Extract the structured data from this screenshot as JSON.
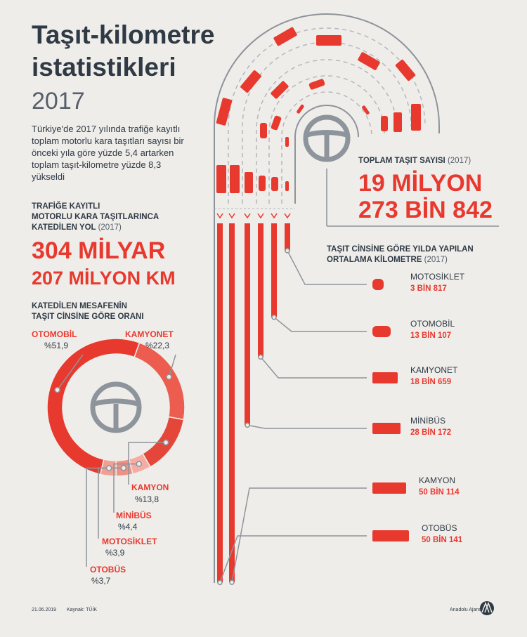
{
  "header": {
    "title_lines": [
      "Taşıt-kilometre",
      "istatistikleri"
    ],
    "year": "2017",
    "intro_lines": [
      "Türkiye'de 2017 yılında trafiğe kayıtlı",
      "toplam motorlu kara taşıtları sayısı bir",
      "önceki yıla göre yüzde 5,4 artarken",
      "toplam taşıt-kilometre yüzde 8,3",
      "yükseldi"
    ]
  },
  "total_km": {
    "label_lines": [
      "TRAFİĞE KAYITLI",
      "MOTORLU KARA TAŞITLARINCA",
      "KATEDİLEN YOL"
    ],
    "label_year": "(2017)",
    "value_lines": [
      "304 MİLYAR",
      "207 MİLYON KM"
    ]
  },
  "total_vehicles": {
    "label": "TOPLAM TAŞIT SAYISI",
    "label_year": "(2017)",
    "value_lines": [
      "19 MİLYON",
      "273 BİN 842"
    ]
  },
  "chart_data": [
    {
      "type": "pie",
      "title_lines": [
        "KATEDİLEN MESAFENİN",
        "TAŞIT CİNSİNE GÖRE ORANI"
      ],
      "categories": [
        "OTOMOBİL",
        "KAMYONET",
        "KAMYON",
        "MİNİBÜS",
        "MOTOSİKLET",
        "OTOBÜS"
      ],
      "values": [
        51.9,
        22.3,
        13.8,
        4.4,
        3.9,
        3.7
      ],
      "value_labels": [
        "%51,9",
        "%22,3",
        "%13,8",
        "%4,4",
        "%3,9",
        "%3,7"
      ],
      "colors": [
        "#e8392f",
        "#ec5d4f",
        "#e4473a",
        "#f4aca3",
        "#f08f83",
        "#eea095"
      ]
    },
    {
      "type": "bar",
      "title_lines": [
        "TAŞIT CİNSİNE GÖRE YILDA YAPILAN",
        "ORTALAMA KİLOMETRE"
      ],
      "title_year": "(2017)",
      "categories": [
        "MOTOSİKLET",
        "OTOMOBİL",
        "KAMYONET",
        "MİNİBÜS",
        "KAMYON",
        "OTOBÜS"
      ],
      "values": [
        3817,
        13107,
        18659,
        28172,
        50114,
        50141
      ],
      "value_labels": [
        "3 BİN 817",
        "13 BİN 107",
        "18 BİN 659",
        "28 BİN 172",
        "50 BİN 114",
        "50 BİN 141"
      ],
      "color": "#e8392f"
    }
  ],
  "footer": {
    "date": "21.06.2019",
    "source": "Kaynak: TÜİK",
    "agency": "Anadolu Ajansı"
  }
}
